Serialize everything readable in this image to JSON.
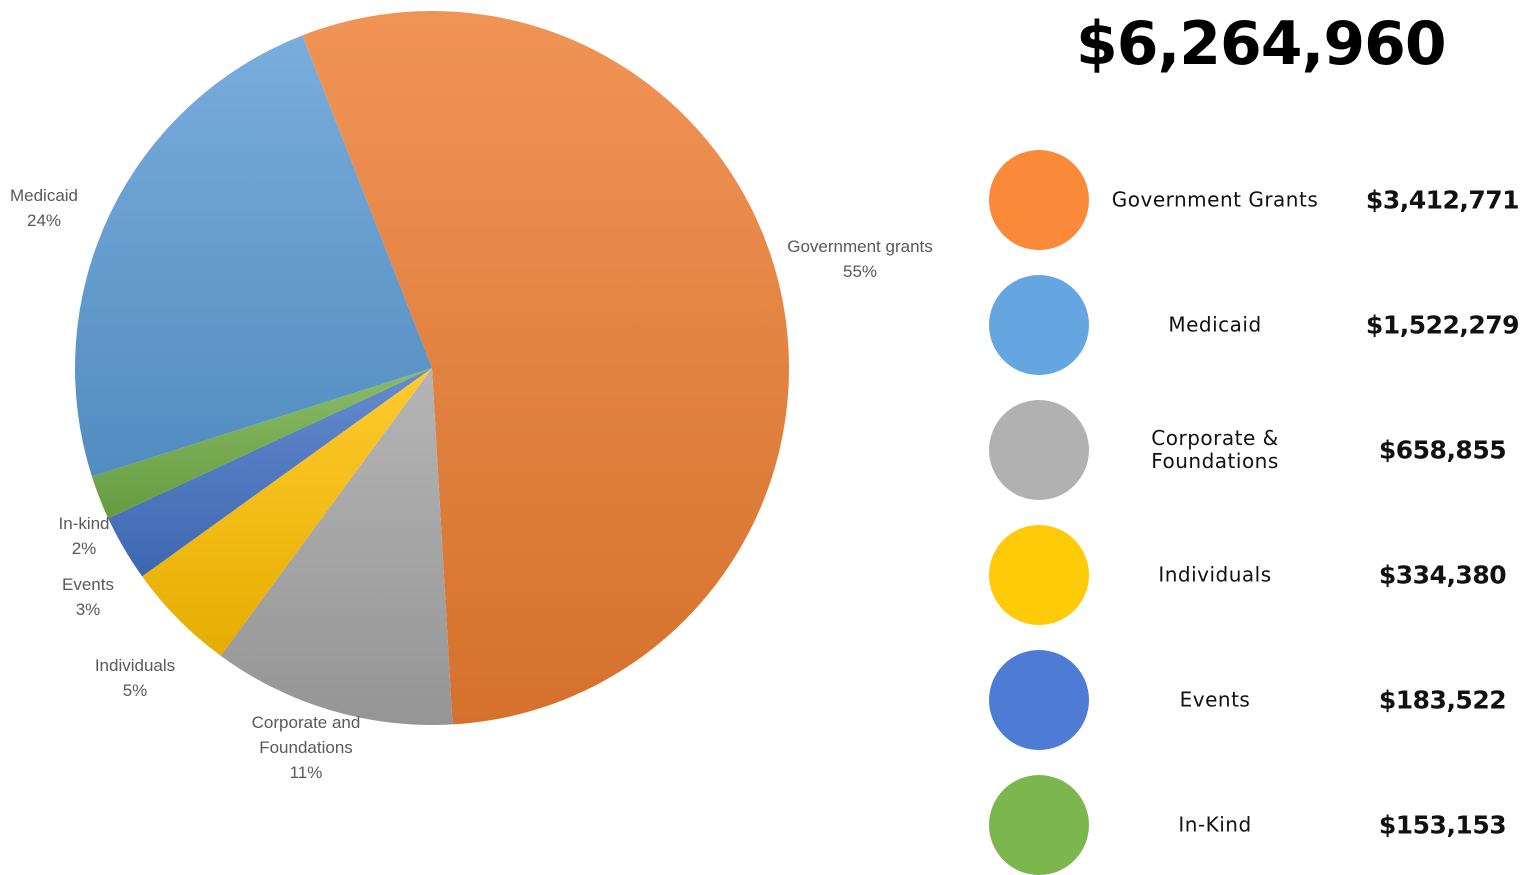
{
  "total": "$6,264,960",
  "chart_data": {
    "type": "pie",
    "categories": [
      "Government grants",
      "Corporate and Foundations",
      "Individuals",
      "Events",
      "In-kind",
      "Medicaid"
    ],
    "values": [
      55,
      11,
      5,
      3,
      2,
      24
    ],
    "value_labels": [
      "55%",
      "11%",
      "5%",
      "3%",
      "2%",
      "24%"
    ],
    "colors": [
      "#ED7D31",
      "#A5A5A5",
      "#FFC000",
      "#4472C4",
      "#70AD47",
      "#5B9BD5"
    ],
    "title": ""
  },
  "legend": [
    {
      "label": "Government Grants",
      "value": "$3,412,771",
      "color": "#FA8A3A"
    },
    {
      "label": "Medicaid",
      "value": "$1,522,279",
      "color": "#65A5E2"
    },
    {
      "label": "Corporate &\nFoundations",
      "value": "$658,855",
      "color": "#B1B1B1"
    },
    {
      "label": "Individuals",
      "value": "$334,380",
      "color": "#FFCB08"
    },
    {
      "label": "Events",
      "value": "$183,522",
      "color": "#4E7BD3"
    },
    {
      "label": "In-Kind",
      "value": "$153,153",
      "color": "#7CB64E"
    }
  ]
}
